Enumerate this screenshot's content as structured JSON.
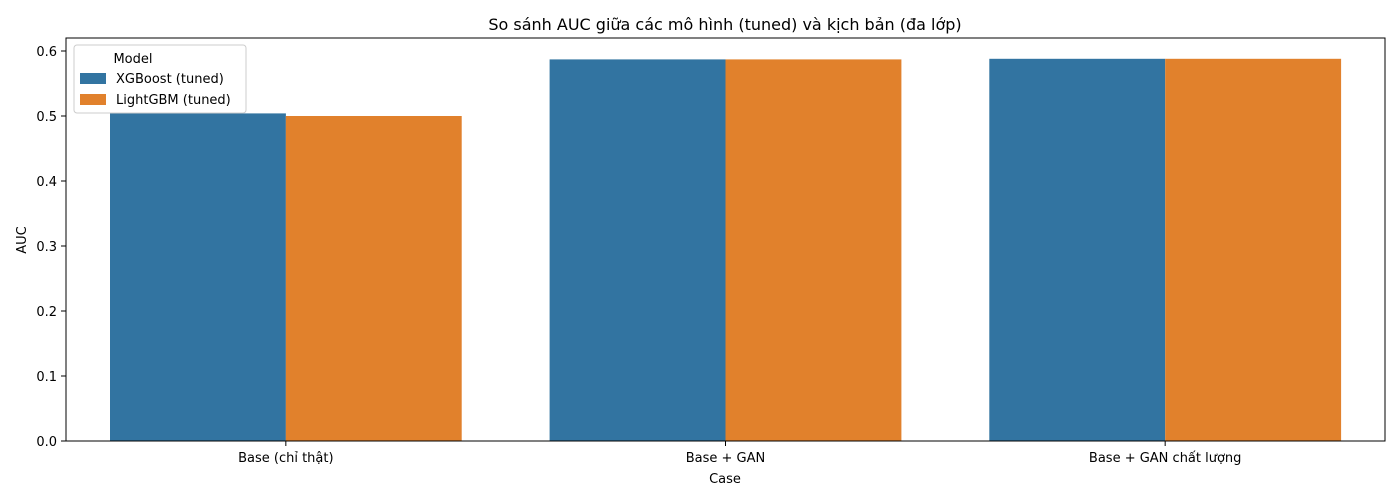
{
  "colors": {
    "xgboost": "#3274a1",
    "lightgbm": "#e1812c"
  },
  "chart_data": {
    "type": "bar",
    "title": "So sánh AUC giữa các mô hình (tuned) và kịch bản (đa lớp)",
    "xlabel": "Case",
    "ylabel": "AUC",
    "categories": [
      "Base (chỉ thật)",
      "Base + GAN",
      "Base + GAN chất lượng"
    ],
    "series": [
      {
        "name": "XGBoost (tuned)",
        "values": [
          0.504,
          0.587,
          0.588
        ],
        "color": "#3274a1"
      },
      {
        "name": "LightGBM (tuned)",
        "values": [
          0.5,
          0.587,
          0.588
        ],
        "color": "#e1812c"
      }
    ],
    "ylim": [
      0,
      0.62
    ],
    "yticks": [
      "0.0",
      "0.1",
      "0.2",
      "0.3",
      "0.4",
      "0.5",
      "0.6"
    ],
    "grid": false,
    "legend": {
      "title": "Model",
      "placement": "top-left"
    }
  }
}
